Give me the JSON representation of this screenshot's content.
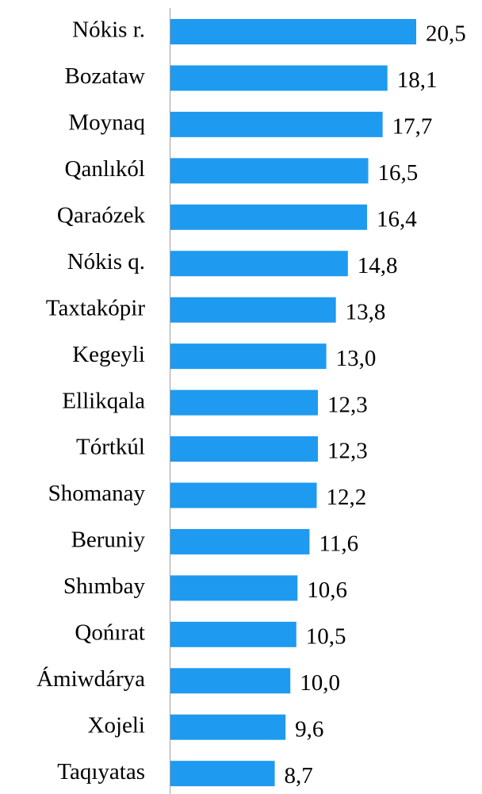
{
  "chart_data": {
    "type": "bar",
    "orientation": "horizontal",
    "color": "#1e9af0",
    "categories": [
      "Nókis r.",
      "Bozataw",
      "Moynaq",
      "Qanlıkól",
      "Qaraózek",
      "Nókis q.",
      "Taxtakópir",
      "Kegeyli",
      "Ellikqala",
      "Tórtkúl",
      "Shomanay",
      "Beruniy",
      "Shımbay",
      "Qońırat",
      "Ámiwdárya",
      "Xojeli",
      "Taqıyatas"
    ],
    "values": [
      20.5,
      18.1,
      17.7,
      16.5,
      16.4,
      14.8,
      13.8,
      13.0,
      12.3,
      12.3,
      12.2,
      11.6,
      10.6,
      10.5,
      10.0,
      9.6,
      8.7
    ],
    "value_labels": [
      "20,5",
      "18,1",
      "17,7",
      "16,5",
      "16,4",
      "14,8",
      "13,8",
      "13,0",
      "12,3",
      "12,3",
      "12,2",
      "11,6",
      "10,6",
      "10,5",
      "10,0",
      "9,6",
      "8,7"
    ]
  }
}
